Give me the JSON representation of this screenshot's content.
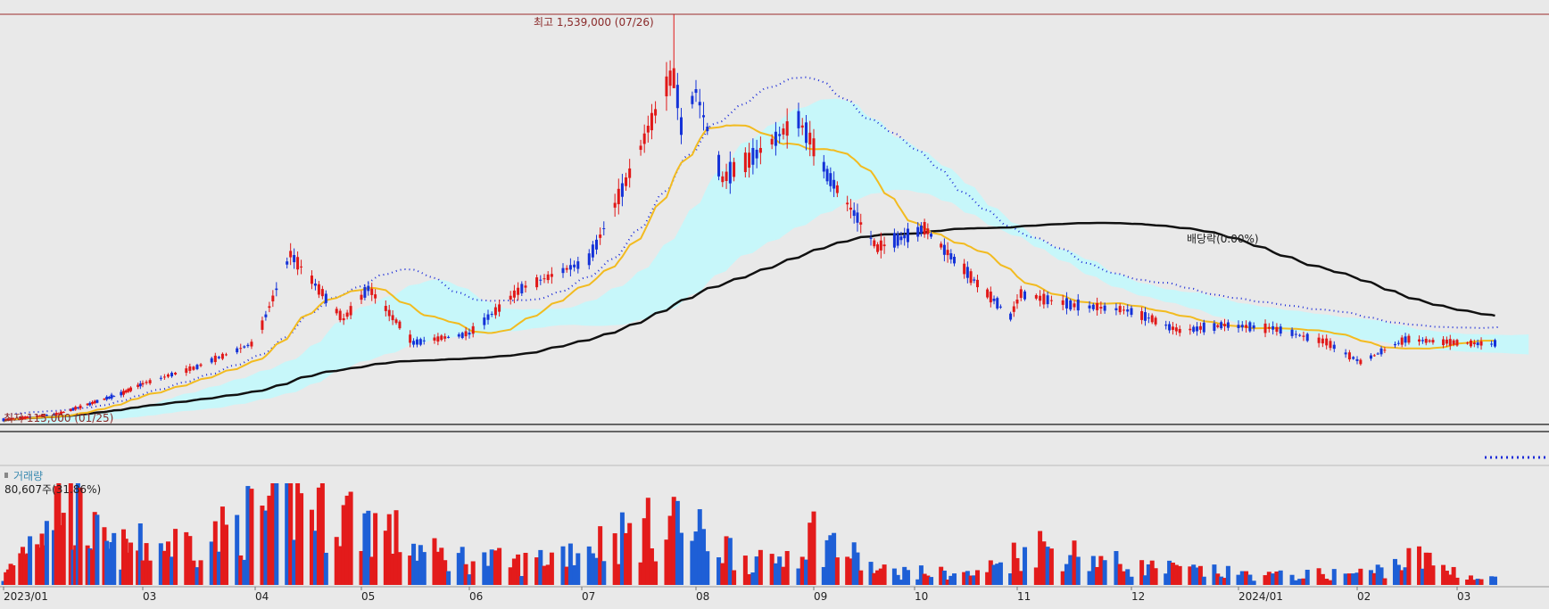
{
  "chart_data": {
    "type": "candlestick",
    "annotations": {
      "high": "최고 1,539,000 (07/26)",
      "low": "최저 115,000 (01/25)",
      "dividend": "배당락(0.00%)"
    },
    "volume_legend": "거래량",
    "volume_count": "80,607주(31.86%)",
    "x_tick_labels": [
      "2023/01",
      "03",
      "04",
      "05",
      "06",
      "07",
      "08",
      "09",
      "10",
      "11",
      "12",
      "2024/01",
      "02",
      "03"
    ],
    "x_tick_dates": [
      "2023-01-02",
      "2023-03-01",
      "2023-04-01",
      "2023-05-01",
      "2023-06-01",
      "2023-07-01",
      "2023-08-01",
      "2023-09-01",
      "2023-10-01",
      "2023-11-01",
      "2023-12-01",
      "2024-01-01",
      "2024-02-01",
      "2024-03-01"
    ],
    "price_anchors": {
      "dates": [
        "2023-01-02",
        "2023-01-25",
        "2023-02-20",
        "2023-03-15",
        "2023-04-01",
        "2023-04-11",
        "2023-04-26",
        "2023-05-03",
        "2023-05-16",
        "2023-06-01",
        "2023-06-15",
        "2023-07-03",
        "2023-07-14",
        "2023-07-26",
        "2023-07-28",
        "2023-08-01",
        "2023-08-08",
        "2023-08-17",
        "2023-08-28",
        "2023-09-05",
        "2023-09-20",
        "2023-10-04",
        "2023-10-18",
        "2023-10-30",
        "2023-11-02",
        "2023-11-16",
        "2023-12-01",
        "2023-12-15",
        "2023-12-28",
        "2024-01-10",
        "2024-01-24",
        "2024-02-02",
        "2024-02-15",
        "2024-03-07"
      ],
      "close": [
        118000,
        140000,
        210000,
        300000,
        390000,
        700000,
        470000,
        580000,
        390000,
        420000,
        580000,
        680000,
        980000,
        1350000,
        1150000,
        1270000,
        960000,
        1050000,
        1170000,
        980000,
        720000,
        790000,
        620000,
        480000,
        560000,
        520000,
        500000,
        430000,
        450000,
        440000,
        390000,
        320000,
        400000,
        385000
      ]
    },
    "volume_anchors": {
      "dates": [
        "2023-01-02",
        "2023-01-25",
        "2023-02-15",
        "2023-03-20",
        "2023-04-11",
        "2023-05-03",
        "2023-05-20",
        "2023-06-15",
        "2023-07-05",
        "2023-07-26",
        "2023-08-20",
        "2023-09-01",
        "2023-09-20",
        "2023-10-20",
        "2023-11-06",
        "2023-12-01",
        "2024-01-10",
        "2024-02-05",
        "2024-02-18",
        "2024-03-07"
      ],
      "volume": [
        20000,
        290000,
        110000,
        150000,
        290000,
        210000,
        100000,
        70000,
        140000,
        200000,
        60000,
        170000,
        45000,
        35000,
        130000,
        60000,
        30000,
        40000,
        90000,
        20000
      ]
    },
    "series": [
      {
        "name": "",
        "type": "candle",
        "up_color": "#e11818",
        "down_color": "#1432d8"
      },
      {
        "name": "",
        "type": "line",
        "color": "#f2bb20"
      },
      {
        "name": "",
        "type": "line",
        "color": "#111111"
      },
      {
        "name": "",
        "type": "band",
        "color": "#c7f7fa"
      },
      {
        "name": "",
        "type": "dotted",
        "color": "#1b2bd8"
      }
    ],
    "grid": false,
    "price_scale": "linear",
    "y_price_top": 1539000,
    "y_price_bottom": 115000
  }
}
